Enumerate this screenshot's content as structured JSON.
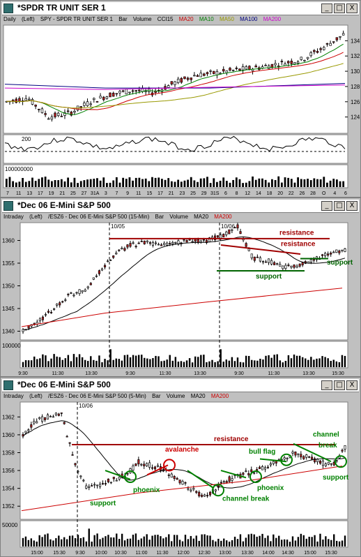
{
  "windows": [
    {
      "title": "*SPDR TR UNIT SER 1",
      "legend": {
        "interval": "Daily",
        "scale": "(Left)",
        "symbol": "SPY - SPDR TR UNIT SER 1",
        "style": "Bar",
        "volume": "Volume",
        "studies": [
          {
            "label": "CCI15",
            "color": "#000000"
          },
          {
            "label": "MA20",
            "color": "#cc0000"
          },
          {
            "label": "MA10",
            "color": "#008000"
          },
          {
            "label": "MA50",
            "color": "#999900"
          },
          {
            "label": "MA100",
            "color": "#000080"
          },
          {
            "label": "MA200",
            "color": "#cc00cc"
          }
        ]
      },
      "price_ticks": [
        "134",
        "132",
        "130",
        "128",
        "126",
        "124"
      ],
      "cci_tick": "200",
      "volume_tick": "100000000",
      "date_ticks": [
        "7",
        "11",
        "13",
        "17",
        "19",
        "21",
        "25",
        "27",
        "31A",
        "3",
        "7",
        "9",
        "11",
        "15",
        "17",
        "21",
        "23",
        "25",
        "29",
        "31S",
        "6",
        "8",
        "12",
        "14",
        "18",
        "20",
        "22",
        "26",
        "28",
        "O",
        "4",
        "6"
      ]
    },
    {
      "title": "*Dec 06  E-Mini S&P 500",
      "legend": {
        "interval": "Intraday",
        "scale": "(Left)",
        "symbol": "/ESZ6 - Dec 06  E-Mini S&P 500  (15-Min)",
        "style": "Bar",
        "volume": "Volume",
        "studies": [
          {
            "label": "MA20",
            "color": "#000000"
          },
          {
            "label": "MA200",
            "color": "#cc0000"
          }
        ]
      },
      "price_ticks": [
        "1360",
        "1355",
        "1350",
        "1345",
        "1340"
      ],
      "volume_tick": "100000",
      "date_marks": [
        "10/05",
        "10/06"
      ],
      "time_ticks": [
        "9:30",
        "11:30",
        "13:30",
        "9:30",
        "11:30",
        "13:30",
        "9:30",
        "11:30",
        "13:30",
        "15:30"
      ],
      "annotations": [
        "resistance",
        "resistance",
        "support",
        "support"
      ]
    },
    {
      "title": "*Dec 06  E-Mini S&P 500",
      "legend": {
        "interval": "Intraday",
        "scale": "(Left)",
        "symbol": "/ESZ6 - Dec 06  E-Mini S&P 500  (5-Min)",
        "style": "Bar",
        "volume": "Volume",
        "studies": [
          {
            "label": "MA20",
            "color": "#000000"
          },
          {
            "label": "MA200",
            "color": "#cc0000"
          }
        ]
      },
      "price_ticks": [
        "1362",
        "1360",
        "1358",
        "1356",
        "1354",
        "1352"
      ],
      "volume_tick": "50000",
      "date_marks": [
        "10/06"
      ],
      "time_ticks": [
        "15:00",
        "15:30",
        "9:30",
        "10:00",
        "10:30",
        "11:00",
        "11:30",
        "12:00",
        "12:30",
        "13:00",
        "13:30",
        "14:00",
        "14:30",
        "15:00",
        "15:30"
      ],
      "annotations": [
        "resistance",
        "avalanche",
        "bull flag",
        "channel",
        "break",
        "phoenix",
        "phoenix",
        "support",
        "channel break",
        "support"
      ]
    }
  ],
  "buttons": {
    "minimize": "_",
    "maximize": "□",
    "close": "X"
  },
  "colors": {
    "up_candle": "#ffffff",
    "down_candle": "#b22222",
    "resistance": "#a00000",
    "support": "#006400",
    "annotation_green": "#008000",
    "annotation_red": "#cc0000"
  }
}
